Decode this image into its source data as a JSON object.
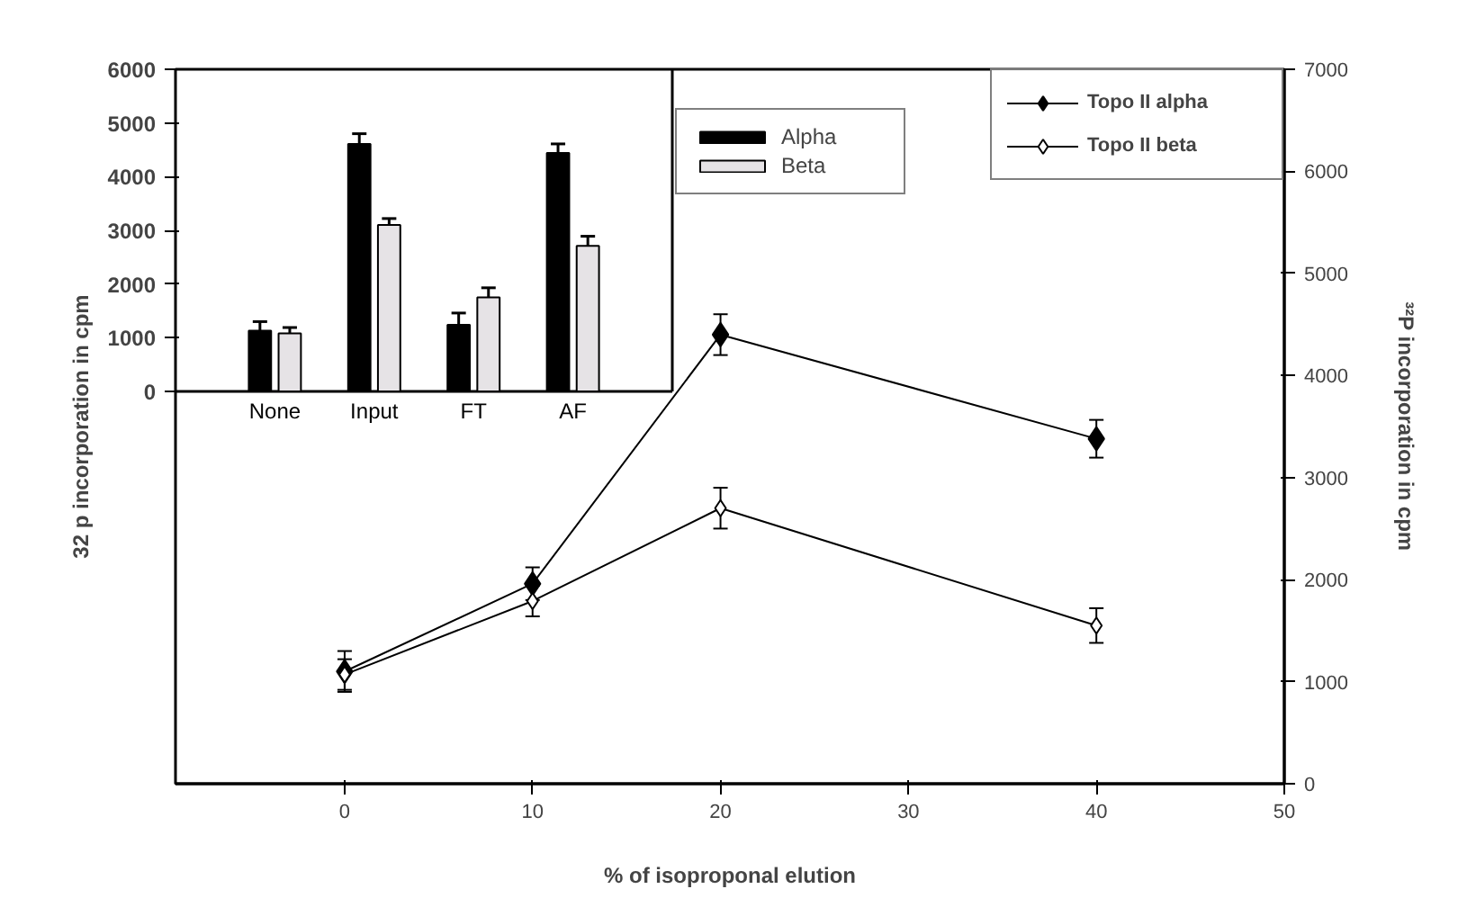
{
  "chart_data": [
    {
      "type": "line",
      "x": [
        0,
        10,
        20,
        40
      ],
      "xlim": [
        -9,
        50
      ],
      "xticks": [
        0,
        10,
        20,
        30,
        40,
        50
      ],
      "ylim": [
        0,
        7000
      ],
      "yticks": [
        0,
        1000,
        2000,
        3000,
        4000,
        5000,
        6000,
        7000
      ],
      "xlabel": "% of isoproponal elution",
      "ylabel": "³²P incorporation in cpm",
      "legend": "top right",
      "marker": "diamond",
      "series": [
        {
          "name": "Topo II alpha",
          "color": "#000000",
          "values": [
            1100,
            1960,
            4400,
            3380
          ],
          "errors": [
            200,
            160,
            200,
            185
          ]
        },
        {
          "name": "Topo II beta",
          "color": "#ffffff",
          "values": [
            1070,
            1790,
            2700,
            1550
          ],
          "errors": [
            150,
            150,
            200,
            170
          ]
        }
      ]
    },
    {
      "type": "bar",
      "categories": [
        "None",
        "Input",
        "FT",
        "AF"
      ],
      "ylim": [
        0,
        6000
      ],
      "yticks": [
        0,
        1000,
        2000,
        3000,
        4000,
        5000,
        6000
      ],
      "ylabel": "32 p incorporation in cpm",
      "legend": "right",
      "series": [
        {
          "name": "Alpha",
          "color": "#000000",
          "values": [
            1130,
            4610,
            1240,
            4440
          ],
          "errors": [
            [
              1130,
              1300
            ],
            [
              4610,
              4800
            ],
            [
              1240,
              1460
            ],
            [
              4440,
              4610
            ]
          ]
        },
        {
          "name": "Beta",
          "color": "#e6e3e6",
          "values": [
            1080,
            3100,
            1750,
            2710
          ],
          "errors": [
            [
              1080,
              1190
            ],
            [
              3100,
              3220
            ],
            [
              1750,
              1930
            ],
            [
              2710,
              2890
            ]
          ]
        }
      ]
    }
  ]
}
